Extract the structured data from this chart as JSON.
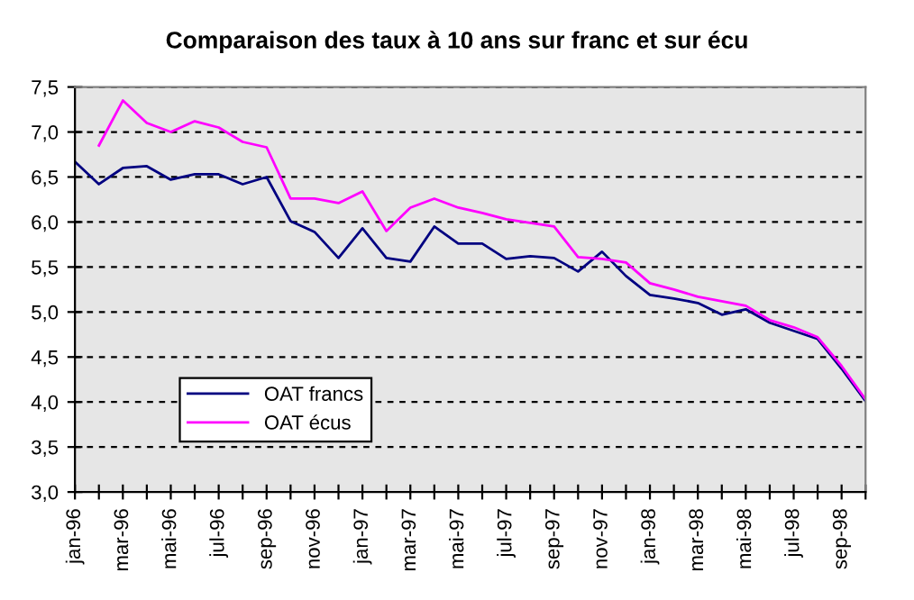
{
  "chart_data": {
    "type": "line",
    "title": "Comparaison des taux à 10 ans sur franc et sur écu",
    "categories": [
      "jan-96",
      null,
      "mar-96",
      null,
      "mai-96",
      null,
      "jul-96",
      null,
      "sep-96",
      null,
      "nov-96",
      null,
      "jan-97",
      null,
      "mar-97",
      null,
      "mai-97",
      null,
      "jul-97",
      null,
      "sep-97",
      null,
      "nov-97",
      null,
      "jan-98",
      null,
      "mar-98",
      null,
      "mai-98",
      null,
      "jul-98",
      null,
      "sep-98",
      null
    ],
    "series": [
      {
        "name": "OAT francs",
        "color": "#000080",
        "values": [
          6.67,
          6.42,
          6.6,
          6.62,
          6.47,
          6.53,
          6.53,
          6.42,
          6.5,
          6.01,
          5.89,
          5.6,
          5.93,
          5.6,
          5.56,
          5.95,
          5.76,
          5.76,
          5.59,
          5.62,
          5.6,
          5.45,
          5.67,
          5.4,
          5.19,
          5.15,
          5.1,
          4.97,
          5.03,
          4.88,
          4.79,
          4.7,
          4.37,
          4.01
        ]
      },
      {
        "name": "OAT écus",
        "color": "#ff00ff",
        "values": [
          null,
          6.85,
          7.35,
          7.1,
          7.0,
          7.12,
          7.05,
          6.89,
          6.83,
          6.26,
          6.26,
          6.21,
          6.34,
          5.9,
          6.16,
          6.26,
          6.16,
          6.1,
          6.03,
          5.99,
          5.95,
          5.61,
          5.59,
          5.55,
          5.32,
          5.25,
          5.17,
          5.12,
          5.07,
          4.91,
          4.83,
          4.72,
          4.4,
          4.03
        ]
      }
    ],
    "ylim": [
      3.0,
      7.5
    ],
    "yticks": [
      {
        "value": 3.0,
        "label": "3,0"
      },
      {
        "value": 3.5,
        "label": "3,5"
      },
      {
        "value": 4.0,
        "label": "4,0"
      },
      {
        "value": 4.5,
        "label": "4,5"
      },
      {
        "value": 5.0,
        "label": "5,0"
      },
      {
        "value": 5.5,
        "label": "5,5"
      },
      {
        "value": 6.0,
        "label": "6,0"
      },
      {
        "value": 6.5,
        "label": "6,5"
      },
      {
        "value": 7.0,
        "label": "7,0"
      },
      {
        "value": 7.5,
        "label": "7,5"
      }
    ],
    "grid": "y",
    "legend": "bottom left",
    "line_style": "solid",
    "marker": "none"
  }
}
